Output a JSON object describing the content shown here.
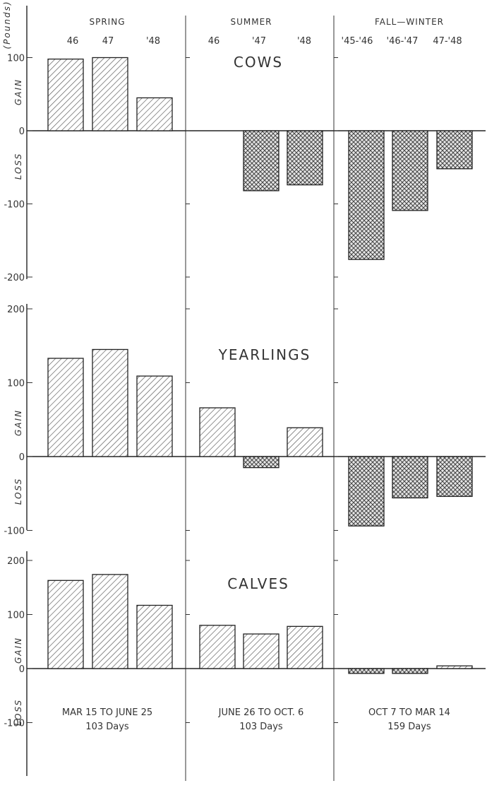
{
  "chart_data": {
    "type": "bar",
    "unit_label": "(Pounds)",
    "positive_label": "GAIN",
    "negative_label": "LOSS",
    "seasons": [
      {
        "name": "SPRING",
        "years": [
          "46",
          "47",
          "'48"
        ]
      },
      {
        "name": "SUMMER",
        "years": [
          "46",
          "'47",
          "'48"
        ]
      },
      {
        "name": "FALL—WINTER",
        "years": [
          "'45-'46",
          "'46-'47",
          "47-'48"
        ]
      }
    ],
    "periods": [
      {
        "range": "MAR 15 TO JUNE 25",
        "days": "103 Days"
      },
      {
        "range": "JUNE 26 TO OCT. 6",
        "days": "103 Days"
      },
      {
        "range": "OCT 7 TO MAR 14",
        "days": "159 Days"
      }
    ],
    "panels": [
      {
        "title": "COWS",
        "ylim": [
          -200,
          110
        ],
        "yticks": [
          100,
          0,
          -100,
          -200
        ],
        "tick_labels": [
          "100",
          "0",
          "-100",
          "-200"
        ],
        "values": [
          [
            98,
            100,
            45
          ],
          [
            null,
            -82,
            -74
          ],
          [
            -176,
            -109,
            -52
          ]
        ]
      },
      {
        "title": "YEARLINGS",
        "ylim": [
          -100,
          200
        ],
        "yticks": [
          200,
          100,
          0,
          -100
        ],
        "tick_labels": [
          "200",
          "100",
          "0",
          "-100"
        ],
        "values": [
          [
            133,
            145,
            109
          ],
          [
            66,
            -15,
            39
          ],
          [
            -94,
            -56,
            -54
          ]
        ]
      },
      {
        "title": "CALVES",
        "ylim": [
          -100,
          200
        ],
        "yticks": [
          200,
          100,
          0,
          -100
        ],
        "tick_labels": [
          "200",
          "100",
          "0",
          "-100"
        ],
        "values": [
          [
            163,
            174,
            117
          ],
          [
            80,
            64,
            78
          ],
          [
            -9,
            -9,
            5
          ]
        ]
      }
    ]
  }
}
